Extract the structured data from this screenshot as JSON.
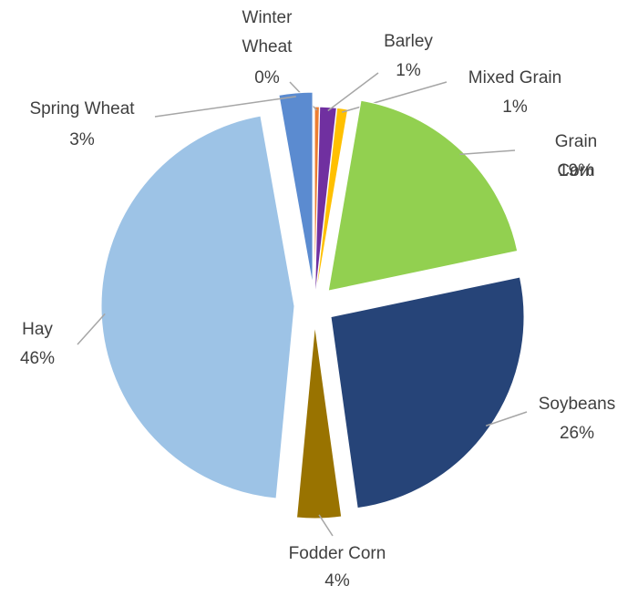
{
  "chart_data": {
    "type": "pie",
    "categories": [
      "Winter Wheat",
      "Barley",
      "Mixed Grain",
      "Grain Corn",
      "Soybeans",
      "Fodder Corn",
      "Hay",
      "Spring Wheat"
    ],
    "values": [
      0.4,
      1.4,
      0.9,
      19.0,
      26.1,
      3.7,
      45.7,
      2.8
    ],
    "value_labels": [
      "0%",
      "1%",
      "1%",
      "19%",
      "26%",
      "4%",
      "46%",
      "3%"
    ],
    "colors": [
      "#ed7d31",
      "#7030a0",
      "#ffc000",
      "#92d050",
      "#264478",
      "#997300",
      "#9dc3e6",
      "#5b8bd0"
    ]
  }
}
